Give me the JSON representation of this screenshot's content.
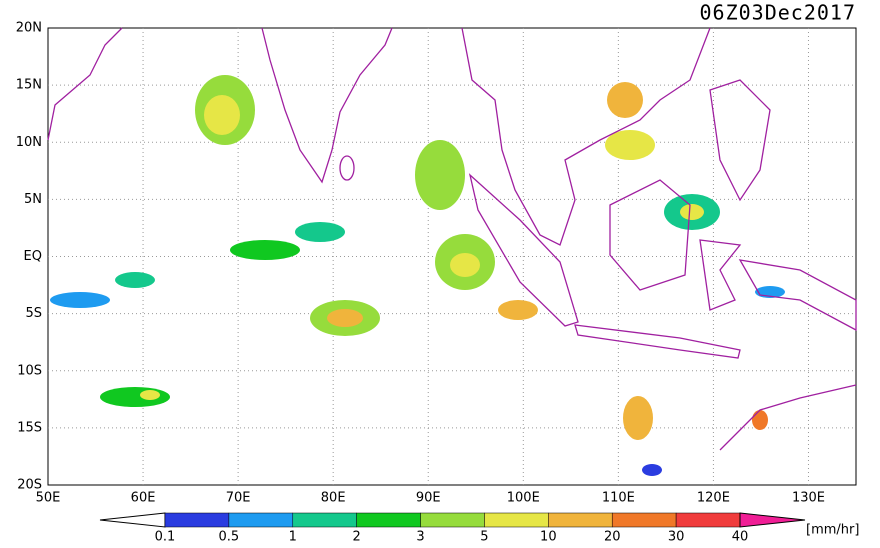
{
  "title": "06Z03Dec2017",
  "lat_labels": [
    "20N",
    "15N",
    "10N",
    "5N",
    "EQ",
    "5S",
    "10S",
    "15S",
    "20S"
  ],
  "lon_labels": [
    "50E",
    "60E",
    "70E",
    "80E",
    "90E",
    "100E",
    "110E",
    "120E",
    "130E"
  ],
  "colorbar": {
    "labels": [
      0.1,
      0.5,
      1,
      2,
      3,
      5,
      10,
      20,
      30,
      40
    ],
    "colors": [
      "#ffffff",
      "#2a3ce0",
      "#1e9bf0",
      "#14c88c",
      "#10c820",
      "#96dc3c",
      "#e6e646",
      "#f0b43c",
      "#f07828",
      "#f03c3c",
      "#f01e96"
    ],
    "unit": "[mm/hr]"
  }
}
